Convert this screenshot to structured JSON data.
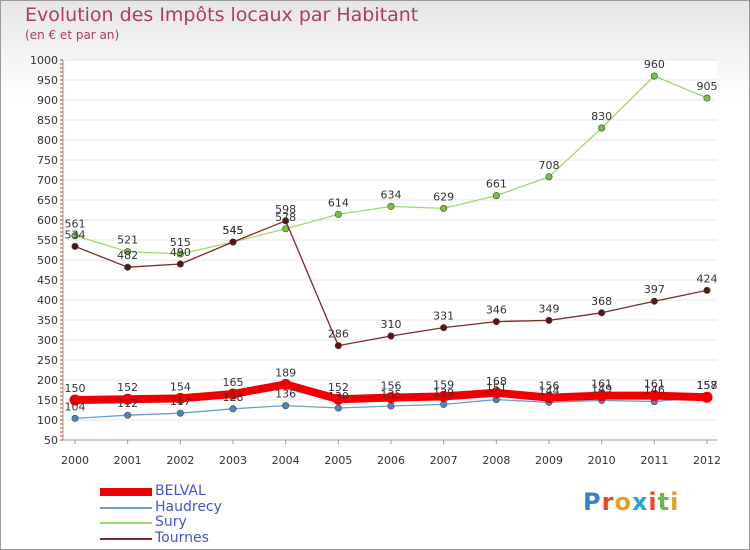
{
  "title": "Evolution des Impôts locaux par Habitant",
  "subtitle": "(en € et par an)",
  "logo": {
    "text": "Proxiti",
    "colors": [
      "#3b82c4",
      "#e8472b",
      "#e8a020",
      "#2b9fd8",
      "#e8472b",
      "#6bb84a",
      "#e8a020"
    ]
  },
  "chart_data": {
    "type": "line",
    "title": "Evolution des Impôts locaux par Habitant",
    "subtitle": "(en € et par an)",
    "x": [
      "2000",
      "2001",
      "2002",
      "2003",
      "2004",
      "2005",
      "2006",
      "2007",
      "2008",
      "2009",
      "2010",
      "2011",
      "2012"
    ],
    "ylim": [
      50,
      1000
    ],
    "yticks": [
      50,
      100,
      150,
      200,
      250,
      300,
      350,
      400,
      450,
      500,
      550,
      600,
      650,
      700,
      750,
      800,
      850,
      900,
      950,
      1000
    ],
    "legend_position": "bottom-left",
    "series": [
      {
        "name": "BELVAL",
        "color": "#ee0000",
        "marker": "#ee0000",
        "values": [
          150,
          152,
          154,
          165,
          189,
          152,
          156,
          159,
          168,
          156,
          161,
          161,
          157
        ]
      },
      {
        "name": "Haudrecy",
        "color": "#6a9fd0",
        "marker": "#4a86c4",
        "values": [
          104,
          112,
          117,
          128,
          136,
          130,
          135,
          139,
          151,
          144,
          149,
          146,
          158
        ]
      },
      {
        "name": "Sury",
        "color": "#9ed870",
        "marker": "#78c23e",
        "values": [
          561,
          521,
          515,
          545,
          578,
          614,
          634,
          629,
          661,
          708,
          830,
          960,
          905
        ]
      },
      {
        "name": "Tournes",
        "color": "#7a2a2a",
        "marker": "#5a1414",
        "values": [
          534,
          482,
          490,
          545,
          598,
          286,
          310,
          331,
          346,
          349,
          368,
          397,
          424
        ]
      }
    ]
  }
}
